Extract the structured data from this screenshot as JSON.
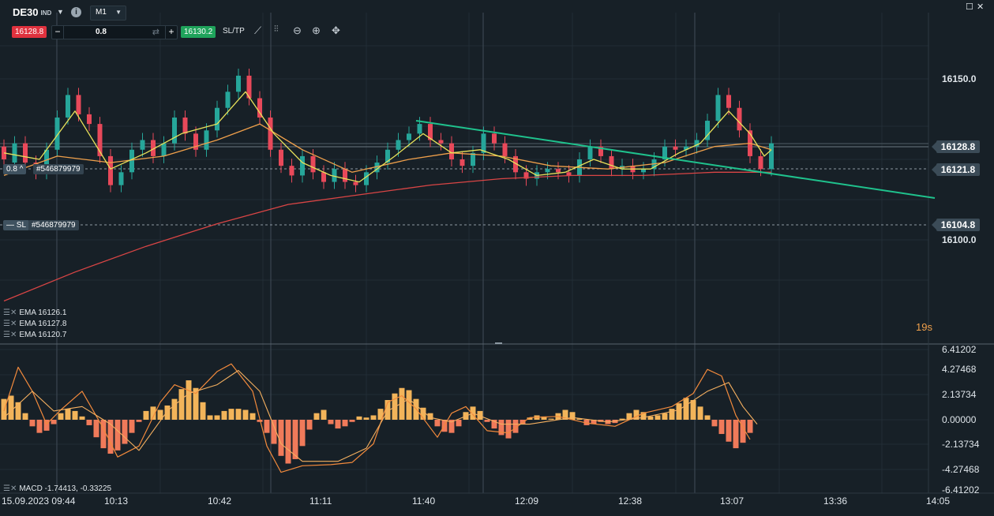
{
  "toolbar": {
    "symbol": "DE30",
    "symbol_tag": "IND",
    "timeframe": "M1",
    "sell_price": "16128.8",
    "buy_price": "16130.2",
    "quantity": "0.8",
    "minus": "−",
    "plus": "+",
    "sltp_label": "SL/TP",
    "icons": [
      "line-chart-icon",
      "candles-icon",
      "zoom-out-icon",
      "zoom-in-icon",
      "crosshair-icon"
    ]
  },
  "window": {
    "maximize_icon": "maximize-icon",
    "close_icon": "close-icon"
  },
  "price_tags": {
    "current": "16128.8",
    "order": "16121.8",
    "stop_loss": "16104.8"
  },
  "orders": {
    "position_size": "0.8",
    "position_id": "#546879979",
    "sl_label": "SL",
    "sl_id": "#546879979"
  },
  "indicators": {
    "ema1": "EMA 16126.1",
    "ema2": "EMA 16127.8",
    "ema3": "EMA 16120.7",
    "macd": "MACD -1.74413, -0.33225"
  },
  "countdown": "19s",
  "colors": {
    "bull": "#26a69a",
    "bear": "#e8495a",
    "ema_fast": "#e8e25a",
    "ema_mid": "#f0a04b",
    "ema_slow": "#d94545",
    "trendline": "#1fc28d",
    "macd_pos": "#f2b45a",
    "macd_neg": "#f07a5a"
  },
  "chart_data": [
    {
      "type": "candlestick",
      "y_ticks": [
        "16150.0",
        "16100.0"
      ],
      "ylim": [
        16080,
        16162
      ],
      "x_ticks": [
        "15.09.2023 09:44",
        "10:13",
        "10:42",
        "11:11",
        "11:40",
        "12:09",
        "12:38",
        "13:07",
        "13:36",
        "14:05"
      ],
      "x_tick_values": [
        0,
        29,
        58,
        87,
        116,
        145,
        174,
        203,
        232,
        261
      ],
      "candles": [
        [
          0,
          16129,
          16125
        ],
        [
          3,
          16124,
          16130
        ],
        [
          6,
          16130,
          16124
        ],
        [
          9,
          16124,
          16121
        ],
        [
          12,
          16121,
          16128
        ],
        [
          15,
          16128,
          16138
        ],
        [
          18,
          16138,
          16145
        ],
        [
          21,
          16145,
          16139
        ],
        [
          24,
          16139,
          16136
        ],
        [
          27,
          16136,
          16126
        ],
        [
          30,
          16126,
          16117
        ],
        [
          33,
          16117,
          16121
        ],
        [
          36,
          16121,
          16128
        ],
        [
          39,
          16128,
          16131
        ],
        [
          42,
          16131,
          16126
        ],
        [
          45,
          16126,
          16130
        ],
        [
          48,
          16130,
          16138
        ],
        [
          51,
          16138,
          16133
        ],
        [
          54,
          16133,
          16128
        ],
        [
          57,
          16128,
          16134
        ],
        [
          60,
          16134,
          16141
        ],
        [
          63,
          16141,
          16146
        ],
        [
          66,
          16146,
          16151
        ],
        [
          69,
          16151,
          16144
        ],
        [
          72,
          16144,
          16138
        ],
        [
          75,
          16138,
          16128
        ],
        [
          78,
          16128,
          16123
        ],
        [
          81,
          16123,
          16120
        ],
        [
          84,
          16120,
          16126
        ],
        [
          87,
          16126,
          16121
        ],
        [
          90,
          16121,
          16118
        ],
        [
          93,
          16118,
          16122
        ],
        [
          96,
          16122,
          16118
        ],
        [
          99,
          16118,
          16117
        ],
        [
          102,
          16117,
          16121
        ],
        [
          105,
          16121,
          16124
        ],
        [
          108,
          16124,
          16128
        ],
        [
          111,
          16128,
          16131
        ],
        [
          114,
          16131,
          16133
        ],
        [
          117,
          16133,
          16136
        ],
        [
          120,
          16136,
          16131
        ],
        [
          123,
          16131,
          16130
        ],
        [
          126,
          16130,
          16125
        ],
        [
          129,
          16125,
          16123
        ],
        [
          132,
          16123,
          16127
        ],
        [
          135,
          16127,
          16133
        ],
        [
          138,
          16133,
          16130
        ],
        [
          141,
          16130,
          16126
        ],
        [
          144,
          16126,
          16121
        ],
        [
          147,
          16121,
          16119
        ],
        [
          150,
          16119,
          16121
        ],
        [
          153,
          16121,
          16122
        ],
        [
          156,
          16122,
          16121
        ],
        [
          159,
          16121,
          16120
        ],
        [
          162,
          16120,
          16125
        ],
        [
          165,
          16125,
          16129
        ],
        [
          168,
          16129,
          16126
        ],
        [
          171,
          16126,
          16122
        ],
        [
          174,
          16122,
          16123
        ],
        [
          177,
          16123,
          16121
        ],
        [
          180,
          16121,
          16122
        ],
        [
          183,
          16122,
          16125
        ],
        [
          186,
          16125,
          16129
        ],
        [
          189,
          16129,
          16128
        ],
        [
          192,
          16128,
          16129
        ],
        [
          195,
          16129,
          16131
        ],
        [
          198,
          16131,
          16137
        ],
        [
          201,
          16137,
          16145
        ],
        [
          204,
          16145,
          16141
        ],
        [
          207,
          16141,
          16134
        ],
        [
          210,
          16134,
          16126
        ],
        [
          213,
          16126,
          16122
        ],
        [
          216,
          16122,
          16130
        ]
      ],
      "ema_fast": [
        [
          0,
          16127
        ],
        [
          10,
          16125
        ],
        [
          20,
          16140
        ],
        [
          30,
          16122
        ],
        [
          40,
          16127
        ],
        [
          50,
          16133
        ],
        [
          60,
          16136
        ],
        [
          68,
          16146
        ],
        [
          76,
          16133
        ],
        [
          84,
          16124
        ],
        [
          92,
          16120
        ],
        [
          100,
          16118
        ],
        [
          110,
          16126
        ],
        [
          118,
          16133
        ],
        [
          126,
          16127
        ],
        [
          134,
          16128
        ],
        [
          142,
          16125
        ],
        [
          150,
          16120
        ],
        [
          158,
          16121
        ],
        [
          166,
          16125
        ],
        [
          174,
          16122
        ],
        [
          182,
          16122
        ],
        [
          190,
          16127
        ],
        [
          196,
          16130
        ],
        [
          204,
          16140
        ],
        [
          210,
          16133
        ],
        [
          214,
          16126
        ],
        [
          216,
          16128
        ]
      ],
      "ema_mid": [
        [
          0,
          16120
        ],
        [
          15,
          16126
        ],
        [
          30,
          16124
        ],
        [
          45,
          16126
        ],
        [
          60,
          16131
        ],
        [
          72,
          16136
        ],
        [
          84,
          16128
        ],
        [
          98,
          16121
        ],
        [
          114,
          16125
        ],
        [
          126,
          16127
        ],
        [
          140,
          16126
        ],
        [
          154,
          16123
        ],
        [
          170,
          16122
        ],
        [
          186,
          16124
        ],
        [
          200,
          16129
        ],
        [
          210,
          16130
        ],
        [
          216,
          16128
        ]
      ],
      "ema_slow": [
        [
          0,
          16081
        ],
        [
          20,
          16090
        ],
        [
          40,
          16098
        ],
        [
          60,
          16105
        ],
        [
          80,
          16111
        ],
        [
          100,
          16114
        ],
        [
          120,
          16117
        ],
        [
          140,
          16119
        ],
        [
          160,
          16120
        ],
        [
          180,
          16120
        ],
        [
          200,
          16121
        ],
        [
          216,
          16121
        ]
      ],
      "trendline": [
        [
          116,
          16137
        ],
        [
          262,
          16113
        ]
      ]
    },
    {
      "type": "bar",
      "title": "MACD",
      "y_ticks": [
        "6.41202",
        "4.27468",
        "2.13734",
        "0.00000",
        "-2.13734",
        "-4.27468",
        "-6.41202"
      ],
      "ylim": [
        -6.41202,
        6.41202
      ],
      "histogram": [
        [
          0,
          1.9
        ],
        [
          2,
          2.2
        ],
        [
          4,
          1.6
        ],
        [
          6,
          0.6
        ],
        [
          8,
          -0.6
        ],
        [
          10,
          -1.2
        ],
        [
          12,
          -1.0
        ],
        [
          14,
          -0.4
        ],
        [
          16,
          0.6
        ],
        [
          18,
          1.0
        ],
        [
          20,
          0.8
        ],
        [
          22,
          0.3
        ],
        [
          24,
          -0.5
        ],
        [
          26,
          -1.6
        ],
        [
          28,
          -2.6
        ],
        [
          30,
          -3.1
        ],
        [
          32,
          -2.8
        ],
        [
          34,
          -2.2
        ],
        [
          36,
          -1.2
        ],
        [
          38,
          -0.2
        ],
        [
          40,
          0.8
        ],
        [
          42,
          1.2
        ],
        [
          44,
          0.9
        ],
        [
          46,
          1.3
        ],
        [
          48,
          1.9
        ],
        [
          50,
          2.8
        ],
        [
          52,
          3.6
        ],
        [
          54,
          2.9
        ],
        [
          56,
          1.6
        ],
        [
          58,
          0.4
        ],
        [
          60,
          0.4
        ],
        [
          62,
          0.8
        ],
        [
          64,
          1.0
        ],
        [
          66,
          1.0
        ],
        [
          68,
          0.9
        ],
        [
          70,
          0.6
        ],
        [
          72,
          -0.2
        ],
        [
          74,
          -1.2
        ],
        [
          76,
          -2.2
        ],
        [
          78,
          -3.3
        ],
        [
          80,
          -4.0
        ],
        [
          82,
          -3.6
        ],
        [
          84,
          -2.4
        ],
        [
          86,
          -0.9
        ],
        [
          88,
          0.6
        ],
        [
          90,
          0.9
        ],
        [
          92,
          -0.4
        ],
        [
          94,
          -0.8
        ],
        [
          96,
          -0.6
        ],
        [
          98,
          -0.2
        ],
        [
          100,
          0.3
        ],
        [
          102,
          0.2
        ],
        [
          104,
          0.4
        ],
        [
          106,
          1.0
        ],
        [
          108,
          1.8
        ],
        [
          110,
          2.4
        ],
        [
          112,
          2.9
        ],
        [
          114,
          2.7
        ],
        [
          116,
          1.9
        ],
        [
          118,
          1.1
        ],
        [
          120,
          0.6
        ],
        [
          122,
          -0.6
        ],
        [
          124,
          -1.1
        ],
        [
          126,
          -1.2
        ],
        [
          128,
          -0.6
        ],
        [
          130,
          0.7
        ],
        [
          132,
          1.2
        ],
        [
          134,
          0.8
        ],
        [
          136,
          -0.2
        ],
        [
          138,
          -0.8
        ],
        [
          140,
          -1.4
        ],
        [
          142,
          -1.7
        ],
        [
          144,
          -1.2
        ],
        [
          146,
          -0.4
        ],
        [
          148,
          0.2
        ],
        [
          150,
          0.4
        ],
        [
          152,
          0.3
        ],
        [
          154,
          0.1
        ],
        [
          156,
          0.6
        ],
        [
          158,
          0.9
        ],
        [
          160,
          0.7
        ],
        [
          162,
          0.1
        ],
        [
          164,
          -0.5
        ],
        [
          166,
          -0.4
        ],
        [
          168,
          -0.2
        ],
        [
          170,
          -0.4
        ],
        [
          172,
          -0.3
        ],
        [
          174,
          0.1
        ],
        [
          176,
          0.6
        ],
        [
          178,
          0.9
        ],
        [
          180,
          0.7
        ],
        [
          182,
          0.3
        ],
        [
          184,
          0.4
        ],
        [
          186,
          0.6
        ],
        [
          188,
          1.0
        ],
        [
          190,
          1.5
        ],
        [
          192,
          2.0
        ],
        [
          194,
          1.8
        ],
        [
          196,
          1.2
        ],
        [
          198,
          0.4
        ],
        [
          200,
          -0.6
        ],
        [
          202,
          -1.3
        ],
        [
          204,
          -2.0
        ],
        [
          206,
          -2.6
        ],
        [
          208,
          -2.1
        ],
        [
          210,
          -1.2
        ]
      ],
      "macd_line": [
        [
          0,
          0.8
        ],
        [
          4,
          4.8
        ],
        [
          8,
          2.6
        ],
        [
          12,
          -0.4
        ],
        [
          16,
          0.9
        ],
        [
          22,
          2.6
        ],
        [
          28,
          -0.8
        ],
        [
          32,
          -3.4
        ],
        [
          38,
          -2.4
        ],
        [
          44,
          1.6
        ],
        [
          48,
          3.2
        ],
        [
          54,
          2.4
        ],
        [
          60,
          4.4
        ],
        [
          64,
          5.1
        ],
        [
          70,
          2.6
        ],
        [
          74,
          -2.4
        ],
        [
          78,
          -4.8
        ],
        [
          84,
          -4.2
        ],
        [
          92,
          -4.1
        ],
        [
          98,
          -3.9
        ],
        [
          104,
          -2.2
        ],
        [
          108,
          1.6
        ],
        [
          112,
          2.2
        ],
        [
          116,
          1.0
        ],
        [
          122,
          -1.6
        ],
        [
          126,
          0.6
        ],
        [
          130,
          1.2
        ],
        [
          136,
          -1.0
        ],
        [
          142,
          -1.2
        ],
        [
          148,
          0.2
        ],
        [
          156,
          0.3
        ],
        [
          164,
          -0.3
        ],
        [
          172,
          -0.6
        ],
        [
          180,
          0.6
        ],
        [
          188,
          1.2
        ],
        [
          194,
          2.4
        ],
        [
          198,
          4.6
        ],
        [
          202,
          4.0
        ],
        [
          206,
          0.4
        ],
        [
          210,
          -1.8
        ]
      ],
      "signal_line": [
        [
          0,
          0.2
        ],
        [
          8,
          2.6
        ],
        [
          14,
          0.8
        ],
        [
          22,
          1.2
        ],
        [
          30,
          -0.4
        ],
        [
          38,
          -2.8
        ],
        [
          46,
          0.8
        ],
        [
          52,
          2.4
        ],
        [
          60,
          3.2
        ],
        [
          66,
          4.5
        ],
        [
          72,
          2.6
        ],
        [
          78,
          -2.2
        ],
        [
          84,
          -3.8
        ],
        [
          94,
          -3.8
        ],
        [
          102,
          -2.6
        ],
        [
          108,
          0.8
        ],
        [
          114,
          1.9
        ],
        [
          120,
          0.2
        ],
        [
          126,
          -0.2
        ],
        [
          132,
          0.6
        ],
        [
          140,
          -0.4
        ],
        [
          148,
          -0.4
        ],
        [
          160,
          0.2
        ],
        [
          170,
          -0.2
        ],
        [
          180,
          0.2
        ],
        [
          190,
          0.9
        ],
        [
          198,
          2.6
        ],
        [
          204,
          3.4
        ],
        [
          208,
          1.2
        ],
        [
          212,
          -0.4
        ]
      ]
    }
  ]
}
